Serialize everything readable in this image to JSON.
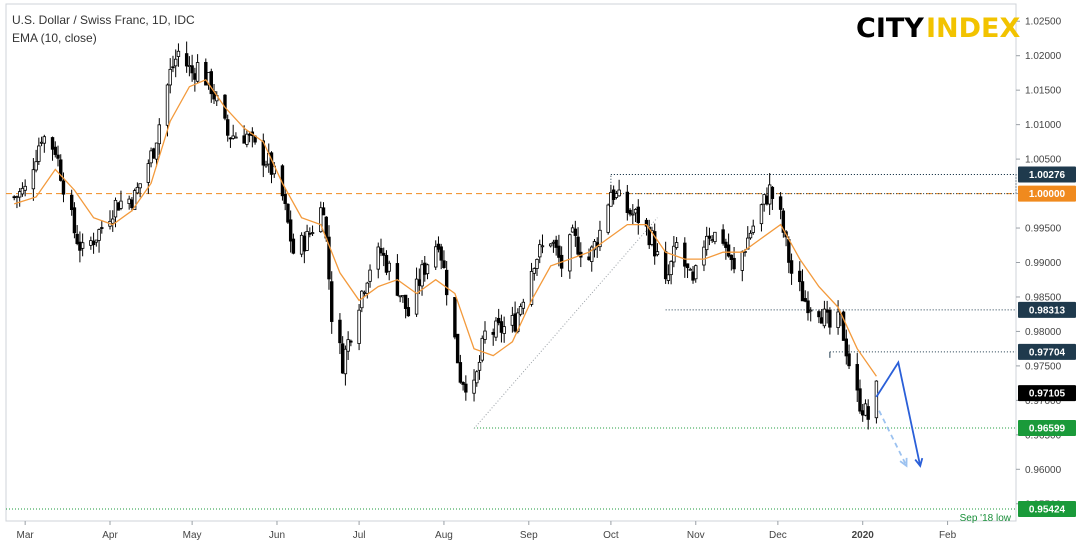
{
  "header": {
    "title": "U.S. Dollar / Swiss Franc, 1D, IDC",
    "indicator": "EMA (10, close)"
  },
  "logo": {
    "part1": "CITY",
    "part2": "INDEX"
  },
  "colors": {
    "ema": "#f39a3c",
    "parity_line": "#f08a1e",
    "level_line": "#1f3a4d",
    "support_line": "#1a9a3a",
    "projection": "#2a5fd8",
    "projection_alt": "#9cc2f0",
    "price_tag_bg": "#000000",
    "level_tag_bg": "#1f3a4d",
    "parity_tag_bg": "#f08a1e",
    "support_tag_bg": "#1a9a3a"
  },
  "chart_data": {
    "type": "candlestick",
    "symbol": "U.S. Dollar / Swiss Franc",
    "interval": "1D",
    "x_tick_labels": [
      "Mar",
      "Apr",
      "May",
      "Jun",
      "Jul",
      "Aug",
      "Sep",
      "Oct",
      "Nov",
      "Dec",
      "2020",
      "Feb"
    ],
    "y_tick_labels": [
      "1.02500",
      "1.02000",
      "1.01500",
      "1.01000",
      "1.00500",
      "1.00000",
      "0.99500",
      "0.99000",
      "0.98500",
      "0.98000",
      "0.97500",
      "0.97000",
      "0.96500",
      "0.96000",
      "0.95500"
    ],
    "ylim": [
      0.9525,
      1.0275
    ],
    "last_price": "0.97105",
    "price_levels": [
      {
        "label": "1.00276",
        "value": 1.00276,
        "kind": "level"
      },
      {
        "label": "1.00000",
        "value": 1.0,
        "kind": "parity"
      },
      {
        "label": "0.98313",
        "value": 0.98313,
        "kind": "level"
      },
      {
        "label": "0.97704",
        "value": 0.97704,
        "kind": "level"
      },
      {
        "label": "0.96599",
        "value": 0.96599,
        "kind": "support"
      },
      {
        "label": "0.95424",
        "value": 0.95424,
        "kind": "support",
        "annotation": "Sep '18 low"
      }
    ],
    "series": [
      {
        "name": "U.S. Dollar / Swiss Franc",
        "anchors": [
          [
            "2019-02-25",
            0.9995
          ],
          [
            "2019-03-01",
            1.0005
          ],
          [
            "2019-03-07",
            1.0085
          ],
          [
            "2019-03-12",
            1.0065
          ],
          [
            "2019-03-19",
            0.9945
          ],
          [
            "2019-03-22",
            0.9915
          ],
          [
            "2019-03-28",
            0.9945
          ],
          [
            "2019-04-03",
            0.9985
          ],
          [
            "2019-04-10",
            0.9995
          ],
          [
            "2019-04-17",
            1.0065
          ],
          [
            "2019-04-23",
            1.0175
          ],
          [
            "2019-04-26",
            1.0205
          ],
          [
            "2019-05-01",
            1.0175
          ],
          [
            "2019-05-03",
            1.0185
          ],
          [
            "2019-05-08",
            1.0155
          ],
          [
            "2019-05-14",
            1.0085
          ],
          [
            "2019-05-21",
            1.0085
          ],
          [
            "2019-05-24",
            1.0065
          ],
          [
            "2019-05-29",
            1.0045
          ],
          [
            "2019-06-03",
            0.9995
          ],
          [
            "2019-06-07",
            0.9915
          ],
          [
            "2019-06-12",
            0.9935
          ],
          [
            "2019-06-18",
            0.9985
          ],
          [
            "2019-06-21",
            0.9825
          ],
          [
            "2019-06-25",
            0.9755
          ],
          [
            "2019-07-01",
            0.9845
          ],
          [
            "2019-07-05",
            0.9895
          ],
          [
            "2019-07-09",
            0.9915
          ],
          [
            "2019-07-15",
            0.9865
          ],
          [
            "2019-07-19",
            0.9825
          ],
          [
            "2019-07-24",
            0.9885
          ],
          [
            "2019-07-30",
            0.9935
          ],
          [
            "2019-08-02",
            0.9865
          ],
          [
            "2019-08-07",
            0.9735
          ],
          [
            "2019-08-12",
            0.9715
          ],
          [
            "2019-08-16",
            0.9795
          ],
          [
            "2019-08-23",
            0.9805
          ],
          [
            "2019-08-27",
            0.9815
          ],
          [
            "2019-09-03",
            0.9905
          ],
          [
            "2019-09-09",
            0.9935
          ],
          [
            "2019-09-13",
            0.9895
          ],
          [
            "2019-09-17",
            0.9935
          ],
          [
            "2019-09-23",
            0.9905
          ],
          [
            "2019-09-27",
            0.9945
          ],
          [
            "2019-10-01",
            1.0005
          ],
          [
            "2019-10-07",
            0.9975
          ],
          [
            "2019-10-11",
            0.9965
          ],
          [
            "2019-10-16",
            0.9935
          ],
          [
            "2019-10-21",
            0.9865
          ],
          [
            "2019-10-25",
            0.9925
          ],
          [
            "2019-10-31",
            0.9865
          ],
          [
            "2019-11-05",
            0.9945
          ],
          [
            "2019-11-11",
            0.9935
          ],
          [
            "2019-11-15",
            0.9885
          ],
          [
            "2019-11-21",
            0.9945
          ],
          [
            "2019-11-28",
            1.0005
          ],
          [
            "2019-12-02",
            0.9965
          ],
          [
            "2019-12-06",
            0.9885
          ],
          [
            "2019-12-11",
            0.9845
          ],
          [
            "2019-12-16",
            0.9835
          ],
          [
            "2019-12-20",
            0.9805
          ],
          [
            "2019-12-24",
            0.9815
          ],
          [
            "2019-12-27",
            0.9755
          ],
          [
            "2019-12-30",
            0.9705
          ],
          [
            "2020-01-03",
            0.9675
          ],
          [
            "2020-01-06",
            0.9715
          ]
        ]
      },
      {
        "name": "EMA (10, close)",
        "anchors": [
          [
            "2019-02-25",
            0.9985
          ],
          [
            "2019-03-05",
            0.9995
          ],
          [
            "2019-03-12",
            1.0035
          ],
          [
            "2019-03-19",
            1.0005
          ],
          [
            "2019-03-26",
            0.9965
          ],
          [
            "2019-04-02",
            0.9955
          ],
          [
            "2019-04-09",
            0.9975
          ],
          [
            "2019-04-16",
            1.0015
          ],
          [
            "2019-04-23",
            1.0105
          ],
          [
            "2019-04-30",
            1.0155
          ],
          [
            "2019-05-06",
            1.0165
          ],
          [
            "2019-05-13",
            1.0125
          ],
          [
            "2019-05-20",
            1.0095
          ],
          [
            "2019-05-27",
            1.0075
          ],
          [
            "2019-06-03",
            1.0015
          ],
          [
            "2019-06-10",
            0.9965
          ],
          [
            "2019-06-17",
            0.9955
          ],
          [
            "2019-06-24",
            0.9885
          ],
          [
            "2019-07-01",
            0.9845
          ],
          [
            "2019-07-08",
            0.9865
          ],
          [
            "2019-07-15",
            0.9875
          ],
          [
            "2019-07-22",
            0.9855
          ],
          [
            "2019-07-29",
            0.9875
          ],
          [
            "2019-08-05",
            0.9855
          ],
          [
            "2019-08-12",
            0.9775
          ],
          [
            "2019-08-19",
            0.9765
          ],
          [
            "2019-08-26",
            0.9785
          ],
          [
            "2019-09-02",
            0.9845
          ],
          [
            "2019-09-09",
            0.9895
          ],
          [
            "2019-09-16",
            0.9905
          ],
          [
            "2019-09-23",
            0.9915
          ],
          [
            "2019-09-30",
            0.9935
          ],
          [
            "2019-10-07",
            0.9955
          ],
          [
            "2019-10-14",
            0.9955
          ],
          [
            "2019-10-21",
            0.9915
          ],
          [
            "2019-10-28",
            0.9905
          ],
          [
            "2019-11-04",
            0.9905
          ],
          [
            "2019-11-11",
            0.9915
          ],
          [
            "2019-11-18",
            0.9915
          ],
          [
            "2019-11-25",
            0.9935
          ],
          [
            "2019-12-02",
            0.9955
          ],
          [
            "2019-12-09",
            0.9905
          ],
          [
            "2019-12-16",
            0.9865
          ],
          [
            "2019-12-23",
            0.9835
          ],
          [
            "2019-12-30",
            0.9775
          ],
          [
            "2020-01-06",
            0.9735
          ]
        ]
      }
    ],
    "projections": [
      {
        "style": "solid",
        "points": [
          [
            "2020-01-06",
            0.9705
          ],
          [
            "2020-01-14",
            0.9755
          ],
          [
            "2020-01-22",
            0.9605
          ]
        ]
      },
      {
        "style": "dashed",
        "points": [
          [
            "2020-01-07",
            0.9685
          ],
          [
            "2020-01-17",
            0.9605
          ]
        ]
      }
    ],
    "trendlines": [
      {
        "style": "dotted",
        "points": [
          [
            "2019-08-12",
            0.9659
          ],
          [
            "2019-10-18",
            0.9965
          ]
        ]
      }
    ],
    "range_boxes": [
      {
        "from": "2019-10-01",
        "to": "2020-02-29",
        "top": 1.00276,
        "bottom": 1.0
      },
      {
        "from": "2019-10-21",
        "to": "2020-02-29",
        "top": 0.98313,
        "bottom": 0.9838
      },
      {
        "from": "2019-12-20",
        "to": "2020-02-29",
        "top": 0.97704,
        "bottom": 0.97704
      }
    ],
    "grid": false,
    "legend": "top-left"
  }
}
